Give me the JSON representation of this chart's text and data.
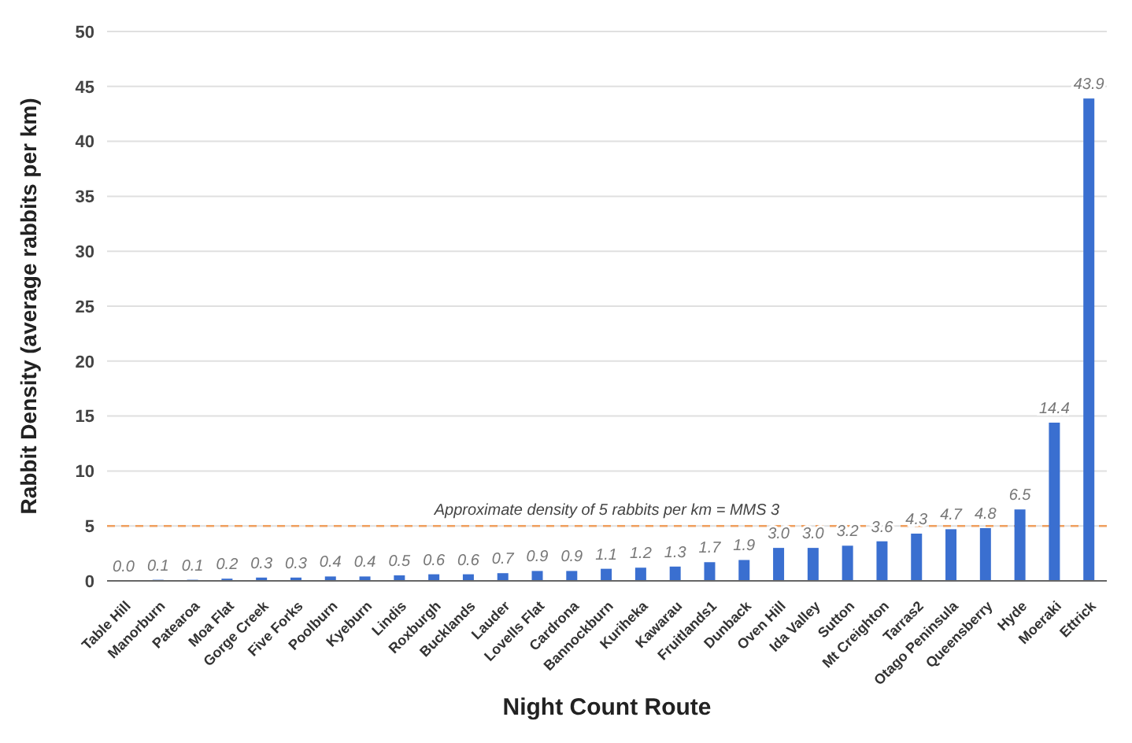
{
  "chart_data": {
    "type": "bar",
    "xlabel": "Night Count Route",
    "ylabel": "Rabbit Density (average rabbits per km)",
    "categories": [
      "Table Hill",
      "Manorburn",
      "Patearoa",
      "Moa Flat",
      "Gorge Creek",
      "Five Forks",
      "Poolburn",
      "Kyeburn",
      "Lindis",
      "Roxburgh",
      "Bucklands",
      "Lauder",
      "Lovells Flat",
      "Cardrona",
      "Bannockburn",
      "Kuriheka",
      "Kawarau",
      "Fruitlands1",
      "Dunback",
      "Oven Hill",
      "Ida Valley",
      "Sutton",
      "Mt Creighton",
      "Tarras2",
      "Otago Peninsula",
      "Queensberry",
      "Hyde",
      "Moeraki",
      "Ettrick"
    ],
    "values": [
      0.0,
      0.1,
      0.1,
      0.2,
      0.3,
      0.3,
      0.4,
      0.4,
      0.5,
      0.6,
      0.6,
      0.7,
      0.9,
      0.9,
      1.1,
      1.2,
      1.3,
      1.7,
      1.9,
      3.0,
      3.0,
      3.2,
      3.6,
      4.3,
      4.7,
      4.8,
      6.5,
      14.4,
      43.9
    ],
    "value_labels": [
      "0.0",
      "0.1",
      "0.1",
      "0.2",
      "0.3",
      "0.3",
      "0.4",
      "0.4",
      "0.5",
      "0.6",
      "0.6",
      "0.7",
      "0.9",
      "0.9",
      "1.1",
      "1.2",
      "1.3",
      "1.7",
      "1.9",
      "3.0",
      "3.0",
      "3.2",
      "3.6",
      "4.3",
      "4.7",
      "4.8",
      "6.5",
      "14.4",
      "43.9"
    ],
    "color": "#3a6fd0",
    "ylim": [
      0,
      50
    ],
    "yticks": [
      0,
      5,
      10,
      15,
      20,
      25,
      30,
      35,
      40,
      45,
      50
    ],
    "grid": "y",
    "ref_lines": [
      {
        "axis": "y",
        "value": 5,
        "label": "Approximate density of 5 rabbits per km = MMS 3",
        "color": "#f0a060",
        "line_style": "dashed"
      }
    ]
  }
}
